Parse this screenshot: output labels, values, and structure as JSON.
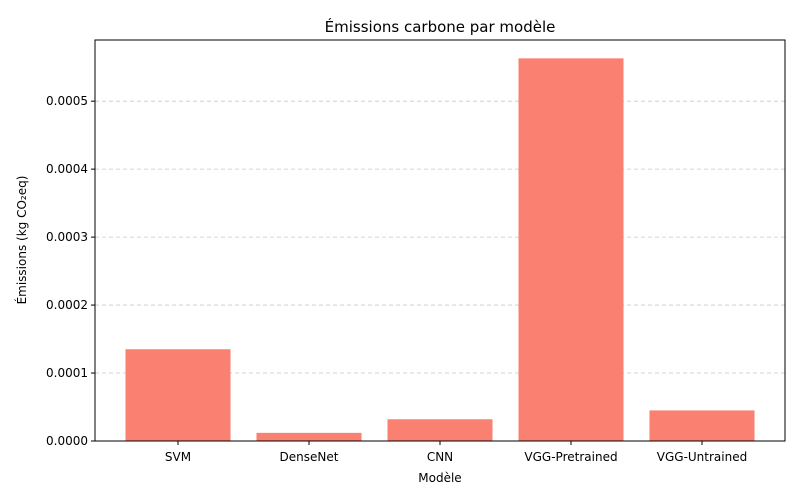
{
  "chart_data": {
    "type": "bar",
    "title": "Émissions carbone par modèle",
    "xlabel": "Modèle",
    "ylabel": "Émissions (kg CO₂eq)",
    "categories": [
      "SVM",
      "DenseNet",
      "CNN",
      "VGG-Pretrained",
      "VGG-Untrained"
    ],
    "values": [
      0.000135,
      1.2e-05,
      3.2e-05,
      0.000563,
      4.5e-05
    ],
    "ylim": [
      0,
      0.00059
    ],
    "yticks": [
      0,
      0.0001,
      0.0002,
      0.0003,
      0.0004,
      0.0005
    ],
    "ytick_labels": [
      "0.0000",
      "0.0001",
      "0.0002",
      "0.0003",
      "0.0004",
      "0.0005"
    ],
    "bar_color": "#fa8072",
    "grid": "y-dashed"
  }
}
